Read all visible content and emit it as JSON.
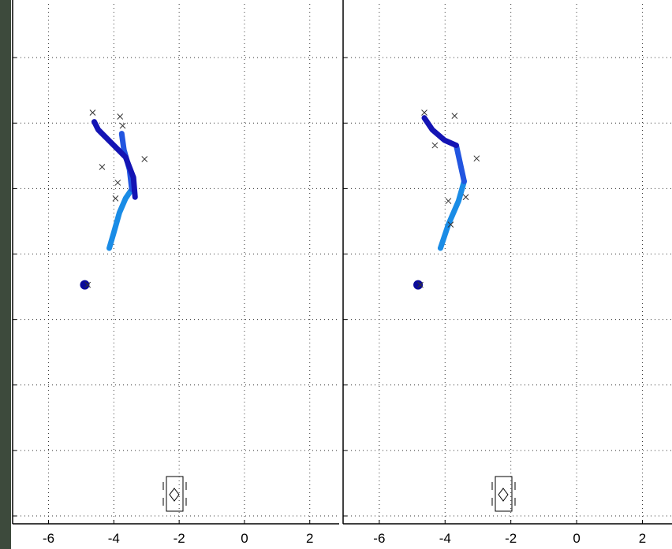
{
  "chart_data": [
    {
      "type": "line",
      "xlim": [
        -7.1,
        2.9
      ],
      "ylim": [
        -0.12,
        7.82
      ],
      "xticks": [
        -6,
        -4,
        -2,
        0,
        2
      ],
      "yticks": [
        0,
        1,
        2,
        3,
        4,
        5,
        6,
        7
      ],
      "grid": true,
      "series": [
        {
          "color": "#1a8ce6",
          "x": [
            -4.14,
            -4.0,
            -3.83,
            -3.64,
            -3.45
          ],
          "values": [
            4.09,
            4.33,
            4.63,
            4.85,
            4.99
          ]
        },
        {
          "color": "#2255e0",
          "x": [
            -3.45,
            -3.52,
            -3.69,
            -3.76
          ],
          "values": [
            4.99,
            5.29,
            5.59,
            5.84
          ]
        },
        {
          "color": "#1414b4",
          "x": [
            -3.35,
            -3.4,
            -3.64,
            -4.12,
            -4.48,
            -4.6
          ],
          "values": [
            4.87,
            5.17,
            5.48,
            5.72,
            5.9,
            6.02
          ]
        },
        {
          "color": "#0a0a9a",
          "marker": "dot",
          "x": [
            -4.89
          ],
          "values": [
            3.53
          ]
        },
        {
          "color": "#333333",
          "marker": "x",
          "x": [
            -4.65,
            -3.81,
            -3.73,
            -3.06,
            -3.88,
            -3.95,
            -4.36,
            -4.8
          ],
          "values": [
            6.16,
            6.1,
            5.96,
            5.45,
            5.09,
            4.85,
            5.33,
            3.53
          ]
        }
      ]
    },
    {
      "type": "line",
      "xlim": [
        -7.1,
        2.9
      ],
      "ylim": [
        -0.12,
        7.82
      ],
      "xticks": [
        -6,
        -4,
        -2,
        0,
        2
      ],
      "yticks": [
        0,
        1,
        2,
        3,
        4,
        5,
        6,
        7
      ],
      "grid": true,
      "series": [
        {
          "color": "#1a8ce6",
          "x": [
            -4.14,
            -3.9,
            -3.59,
            -3.42
          ],
          "values": [
            4.09,
            4.45,
            4.81,
            5.11
          ]
        },
        {
          "color": "#2255e0",
          "x": [
            -3.42,
            -3.66
          ],
          "values": [
            5.11,
            5.66
          ]
        },
        {
          "color": "#1414b4",
          "x": [
            -3.66,
            -4.02,
            -4.39,
            -4.63
          ],
          "values": [
            5.66,
            5.74,
            5.9,
            6.08
          ]
        },
        {
          "color": "#0a0a9a",
          "marker": "dot",
          "x": [
            -4.82
          ],
          "values": [
            3.53
          ]
        },
        {
          "color": "#333333",
          "marker": "x",
          "x": [
            -4.63,
            -3.71,
            -4.31,
            -3.04,
            -3.9,
            -3.37,
            -3.83,
            -4.75
          ],
          "values": [
            6.16,
            6.11,
            5.66,
            5.46,
            4.81,
            4.87,
            4.45,
            3.53
          ]
        }
      ]
    }
  ]
}
